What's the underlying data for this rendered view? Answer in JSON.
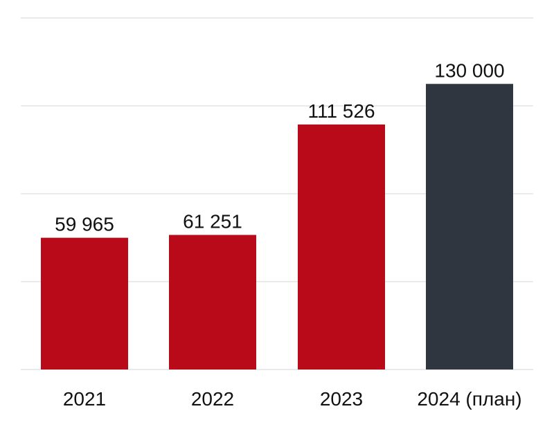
{
  "chart_data": {
    "type": "bar",
    "categories": [
      "2021",
      "2022",
      "2023",
      "2024 (план)"
    ],
    "values": [
      59965,
      61251,
      111526,
      130000
    ],
    "value_labels": [
      "59 965",
      "61 251",
      "111 526",
      "130 000"
    ],
    "bar_colors": [
      "#b80a19",
      "#b80a19",
      "#b80a19",
      "#30363f"
    ],
    "ylim": [
      0,
      160000
    ],
    "gridlines": [
      0,
      40000,
      80000,
      120000,
      160000
    ],
    "grid": true,
    "legend": "none"
  }
}
